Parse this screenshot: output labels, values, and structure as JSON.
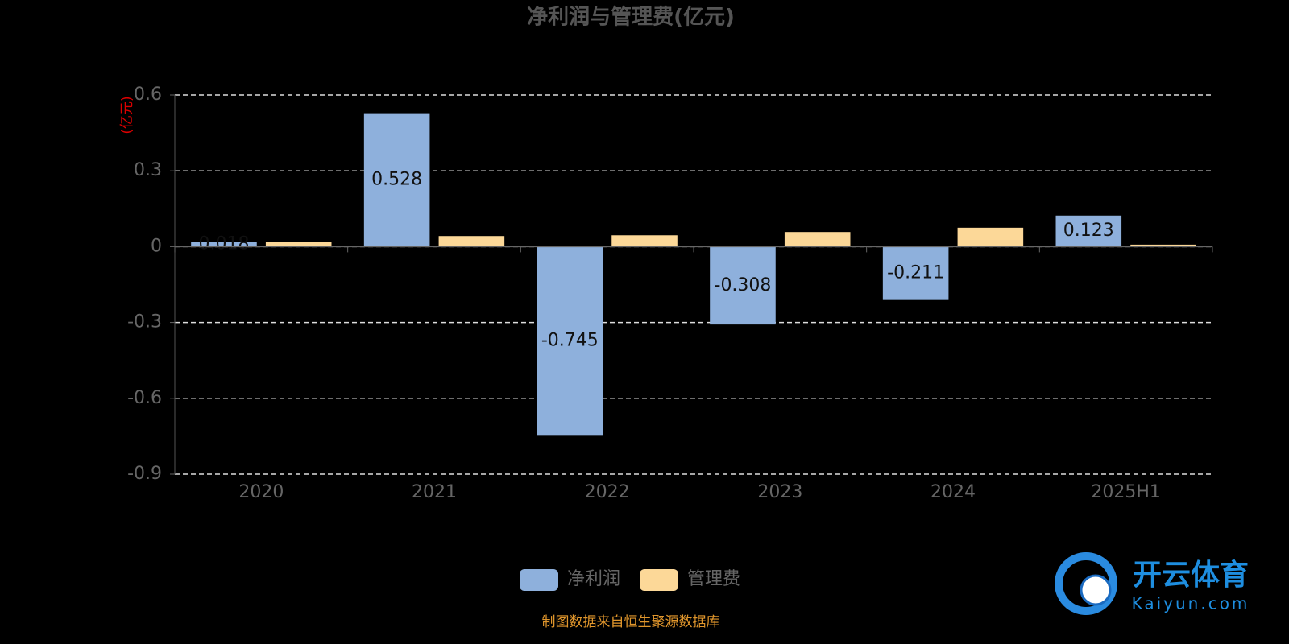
{
  "chart_data": {
    "type": "bar",
    "title": "净利润与管理费(亿元)",
    "y_axis_label": "(亿元)",
    "categories": [
      "2020",
      "2021",
      "2022",
      "2023",
      "2024",
      "2025H1"
    ],
    "series": [
      {
        "name": "净利润",
        "color": "#8eb0dc",
        "values": [
          0.018,
          0.528,
          -0.745,
          -0.308,
          -0.211,
          0.123
        ],
        "show_labels": true
      },
      {
        "name": "管理费",
        "color": "#fcd898",
        "values": [
          0.02,
          0.042,
          0.045,
          0.058,
          0.075,
          0.008
        ],
        "show_labels": false
      }
    ],
    "ylim": [
      -0.9,
      0.6
    ],
    "yticks": [
      -0.9,
      -0.6,
      -0.3,
      0,
      0.3,
      0.6
    ],
    "grid": true,
    "legend": "bottom",
    "source": "制图数据来自恒生聚源数据库",
    "watermark": {
      "name": "开云体育",
      "site": "Kaiyun.com"
    }
  }
}
